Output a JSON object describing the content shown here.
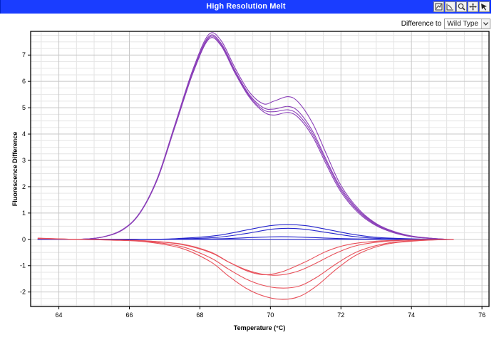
{
  "window": {
    "title": "High Resolution Melt"
  },
  "toolbar": {
    "tools": [
      {
        "name": "zoom-to-fit-icon"
      },
      {
        "name": "zoom-region-icon"
      },
      {
        "name": "zoom-magnify-icon"
      },
      {
        "name": "pan-move-icon"
      },
      {
        "name": "select-pointer-icon"
      }
    ]
  },
  "difference": {
    "label": "Difference to",
    "selected": "Wild Type"
  },
  "colors": {
    "titlebar": "#1a3dff",
    "purple": "#8a3fb8",
    "blue": "#2424cc",
    "red": "#e8505a",
    "grid": "#d8d8d8"
  },
  "chart_data": {
    "type": "line",
    "xlabel": "Temperature (°C)",
    "ylabel": "Fluorescence Difference",
    "xlim": [
      63.2,
      76.2
    ],
    "ylim": [
      -2.55,
      7.9
    ],
    "xticks": [
      64,
      66,
      68,
      70,
      72,
      74,
      76
    ],
    "yticks": [
      -2,
      -1,
      0,
      1,
      2,
      3,
      4,
      5,
      6,
      7
    ],
    "grid": true,
    "legend": "none",
    "series": [
      {
        "group": "purple",
        "points": [
          [
            63.4,
            0.0
          ],
          [
            64.5,
            0.0
          ],
          [
            65.2,
            0.08
          ],
          [
            65.8,
            0.35
          ],
          [
            66.3,
            1.0
          ],
          [
            66.8,
            2.3
          ],
          [
            67.3,
            4.3
          ],
          [
            67.8,
            6.3
          ],
          [
            68.25,
            7.6
          ],
          [
            68.6,
            7.35
          ],
          [
            69.0,
            6.3
          ],
          [
            69.4,
            5.4
          ],
          [
            69.8,
            4.85
          ],
          [
            70.1,
            4.72
          ],
          [
            70.5,
            4.82
          ],
          [
            70.8,
            4.62
          ],
          [
            71.2,
            3.9
          ],
          [
            71.6,
            2.8
          ],
          [
            72.0,
            1.8
          ],
          [
            72.5,
            1.0
          ],
          [
            73.0,
            0.52
          ],
          [
            73.5,
            0.25
          ],
          [
            74.0,
            0.1
          ],
          [
            74.5,
            0.04
          ],
          [
            75.0,
            0.0
          ]
        ]
      },
      {
        "group": "purple",
        "points": [
          [
            63.4,
            0.0
          ],
          [
            64.5,
            0.0
          ],
          [
            65.2,
            0.08
          ],
          [
            65.8,
            0.36
          ],
          [
            66.3,
            1.0
          ],
          [
            66.8,
            2.3
          ],
          [
            67.3,
            4.32
          ],
          [
            67.8,
            6.35
          ],
          [
            68.25,
            7.65
          ],
          [
            68.6,
            7.4
          ],
          [
            69.0,
            6.35
          ],
          [
            69.4,
            5.45
          ],
          [
            69.8,
            4.92
          ],
          [
            70.1,
            4.85
          ],
          [
            70.5,
            4.92
          ],
          [
            70.8,
            4.72
          ],
          [
            71.2,
            4.0
          ],
          [
            71.6,
            2.9
          ],
          [
            72.0,
            1.88
          ],
          [
            72.5,
            1.05
          ],
          [
            73.0,
            0.55
          ],
          [
            73.5,
            0.26
          ],
          [
            74.0,
            0.11
          ],
          [
            74.5,
            0.04
          ],
          [
            75.0,
            0.0
          ]
        ]
      },
      {
        "group": "purple",
        "points": [
          [
            63.4,
            0.0
          ],
          [
            64.5,
            0.0
          ],
          [
            65.2,
            0.08
          ],
          [
            65.8,
            0.36
          ],
          [
            66.3,
            1.0
          ],
          [
            66.8,
            2.32
          ],
          [
            67.3,
            4.35
          ],
          [
            67.8,
            6.38
          ],
          [
            68.25,
            7.7
          ],
          [
            68.6,
            7.45
          ],
          [
            69.0,
            6.4
          ],
          [
            69.4,
            5.5
          ],
          [
            69.8,
            5.0
          ],
          [
            70.1,
            4.95
          ],
          [
            70.5,
            5.05
          ],
          [
            70.8,
            4.85
          ],
          [
            71.2,
            4.1
          ],
          [
            71.6,
            2.98
          ],
          [
            72.0,
            1.95
          ],
          [
            72.5,
            1.1
          ],
          [
            73.0,
            0.58
          ],
          [
            73.5,
            0.28
          ],
          [
            74.0,
            0.12
          ],
          [
            74.5,
            0.05
          ],
          [
            75.0,
            0.0
          ]
        ]
      },
      {
        "group": "purple",
        "points": [
          [
            63.4,
            0.0
          ],
          [
            64.5,
            0.0
          ],
          [
            65.2,
            0.08
          ],
          [
            65.8,
            0.37
          ],
          [
            66.3,
            1.02
          ],
          [
            66.8,
            2.35
          ],
          [
            67.3,
            4.4
          ],
          [
            67.8,
            6.45
          ],
          [
            68.25,
            7.78
          ],
          [
            68.6,
            7.55
          ],
          [
            69.0,
            6.5
          ],
          [
            69.4,
            5.6
          ],
          [
            69.8,
            5.15
          ],
          [
            70.1,
            5.25
          ],
          [
            70.5,
            5.42
          ],
          [
            70.8,
            5.2
          ],
          [
            71.2,
            4.4
          ],
          [
            71.6,
            3.2
          ],
          [
            72.0,
            2.05
          ],
          [
            72.5,
            1.15
          ],
          [
            73.0,
            0.6
          ],
          [
            73.5,
            0.3
          ],
          [
            74.0,
            0.13
          ],
          [
            74.5,
            0.05
          ],
          [
            75.0,
            0.0
          ]
        ]
      },
      {
        "group": "blue",
        "points": [
          [
            63.4,
            0.0
          ],
          [
            66.5,
            0.0
          ],
          [
            67.5,
            0.04
          ],
          [
            68.5,
            0.15
          ],
          [
            69.3,
            0.35
          ],
          [
            70.0,
            0.52
          ],
          [
            70.5,
            0.56
          ],
          [
            71.0,
            0.52
          ],
          [
            71.6,
            0.38
          ],
          [
            72.3,
            0.2
          ],
          [
            73.0,
            0.08
          ],
          [
            74.0,
            0.02
          ],
          [
            75.0,
            0.0
          ]
        ]
      },
      {
        "group": "blue",
        "points": [
          [
            63.4,
            0.0
          ],
          [
            66.5,
            0.0
          ],
          [
            67.5,
            0.02
          ],
          [
            68.5,
            0.08
          ],
          [
            69.3,
            0.22
          ],
          [
            70.0,
            0.38
          ],
          [
            70.5,
            0.42
          ],
          [
            71.0,
            0.38
          ],
          [
            71.6,
            0.26
          ],
          [
            72.3,
            0.12
          ],
          [
            73.0,
            0.04
          ],
          [
            74.0,
            0.01
          ],
          [
            75.0,
            0.0
          ]
        ]
      },
      {
        "group": "blue",
        "points": [
          [
            63.4,
            0.0
          ],
          [
            67.0,
            0.0
          ],
          [
            68.5,
            0.02
          ],
          [
            69.5,
            0.07
          ],
          [
            70.3,
            0.1
          ],
          [
            71.0,
            0.08
          ],
          [
            72.0,
            0.03
          ],
          [
            73.0,
            0.01
          ],
          [
            75.0,
            0.0
          ]
        ]
      },
      {
        "group": "blue",
        "points": [
          [
            63.4,
            0.0
          ],
          [
            75.2,
            0.0
          ]
        ]
      },
      {
        "group": "red",
        "points": [
          [
            63.4,
            0.05
          ],
          [
            64.5,
            0.0
          ],
          [
            65.5,
            -0.02
          ],
          [
            66.5,
            -0.06
          ],
          [
            67.5,
            -0.18
          ],
          [
            68.3,
            -0.48
          ],
          [
            68.8,
            -0.85
          ],
          [
            69.3,
            -1.18
          ],
          [
            69.7,
            -1.33
          ],
          [
            70.0,
            -1.33
          ],
          [
            70.4,
            -1.2
          ],
          [
            71.0,
            -0.85
          ],
          [
            71.6,
            -0.45
          ],
          [
            72.2,
            -0.2
          ],
          [
            73.0,
            -0.07
          ],
          [
            74.0,
            -0.02
          ],
          [
            75.0,
            0.0
          ]
        ]
      },
      {
        "group": "red",
        "points": [
          [
            63.4,
            0.04
          ],
          [
            64.5,
            0.0
          ],
          [
            65.5,
            -0.02
          ],
          [
            66.5,
            -0.06
          ],
          [
            67.5,
            -0.2
          ],
          [
            68.3,
            -0.5
          ],
          [
            68.8,
            -0.85
          ],
          [
            69.3,
            -1.15
          ],
          [
            69.8,
            -1.33
          ],
          [
            70.3,
            -1.35
          ],
          [
            70.8,
            -1.2
          ],
          [
            71.3,
            -0.9
          ],
          [
            71.9,
            -0.5
          ],
          [
            72.5,
            -0.22
          ],
          [
            73.3,
            -0.07
          ],
          [
            74.2,
            -0.02
          ],
          [
            75.2,
            0.0
          ]
        ]
      },
      {
        "group": "red",
        "points": [
          [
            63.4,
            0.03
          ],
          [
            64.5,
            0.0
          ],
          [
            65.5,
            -0.02
          ],
          [
            66.5,
            -0.08
          ],
          [
            67.5,
            -0.28
          ],
          [
            68.3,
            -0.7
          ],
          [
            68.8,
            -1.12
          ],
          [
            69.3,
            -1.5
          ],
          [
            69.8,
            -1.75
          ],
          [
            70.3,
            -1.85
          ],
          [
            70.8,
            -1.78
          ],
          [
            71.3,
            -1.45
          ],
          [
            71.9,
            -0.9
          ],
          [
            72.5,
            -0.45
          ],
          [
            73.3,
            -0.15
          ],
          [
            74.2,
            -0.04
          ],
          [
            75.2,
            0.0
          ]
        ]
      },
      {
        "group": "red",
        "points": [
          [
            63.4,
            0.03
          ],
          [
            64.5,
            0.0
          ],
          [
            65.5,
            -0.03
          ],
          [
            66.5,
            -0.1
          ],
          [
            67.5,
            -0.35
          ],
          [
            68.3,
            -0.85
          ],
          [
            68.8,
            -1.38
          ],
          [
            69.3,
            -1.85
          ],
          [
            69.8,
            -2.15
          ],
          [
            70.3,
            -2.28
          ],
          [
            70.8,
            -2.18
          ],
          [
            71.3,
            -1.78
          ],
          [
            71.9,
            -1.1
          ],
          [
            72.5,
            -0.55
          ],
          [
            73.3,
            -0.18
          ],
          [
            74.2,
            -0.05
          ],
          [
            75.2,
            0.0
          ]
        ]
      }
    ]
  }
}
